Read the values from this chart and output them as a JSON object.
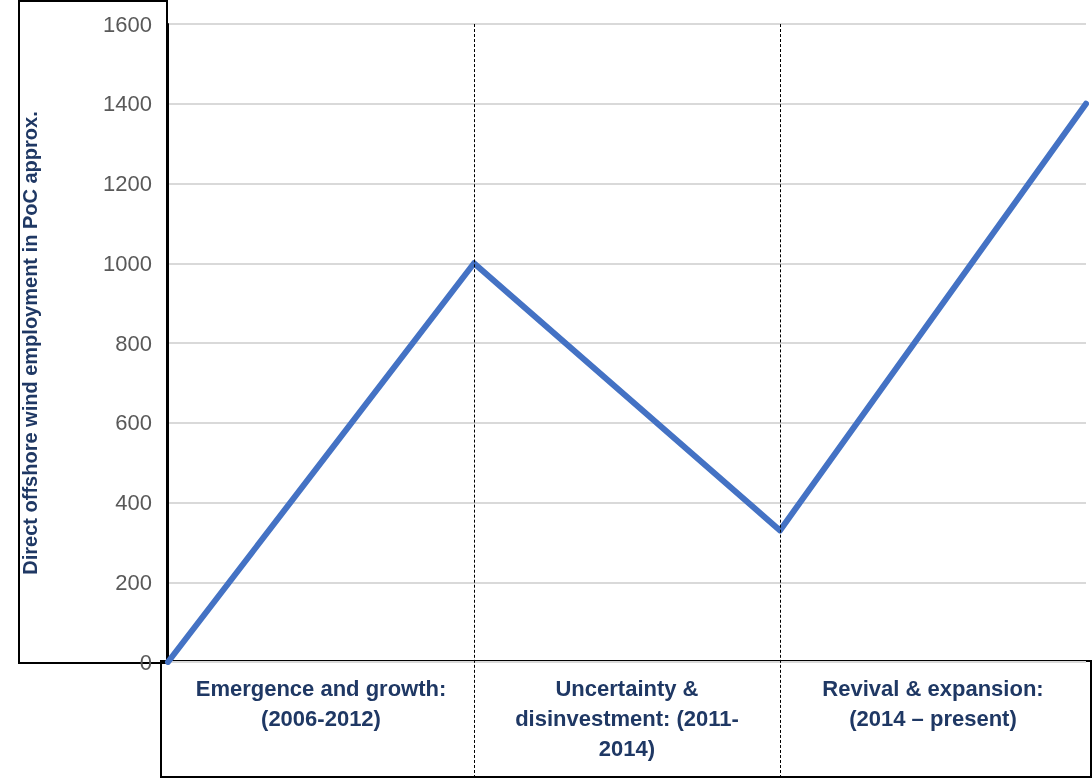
{
  "chart_data": {
    "type": "line",
    "ylabel": "Direct offshore wind employment in PoC approx.",
    "categories": [
      null,
      null,
      null,
      null
    ],
    "series": [
      {
        "color": "#4472c4",
        "values": [
          0,
          1000,
          330,
          1400
        ]
      }
    ],
    "ylim": [
      0,
      1600
    ],
    "yticks": [
      0,
      200,
      400,
      600,
      800,
      1000,
      1200,
      1400,
      1600
    ],
    "grid": "y",
    "tick_labels": "y",
    "marker": "none",
    "line_style": "solid",
    "annotations": [
      "Emergence and growth: (2006-2012)",
      "Uncertainty & disinvestment: (2011-2014)",
      "Revival & expansion: (2014 – present)"
    ]
  }
}
